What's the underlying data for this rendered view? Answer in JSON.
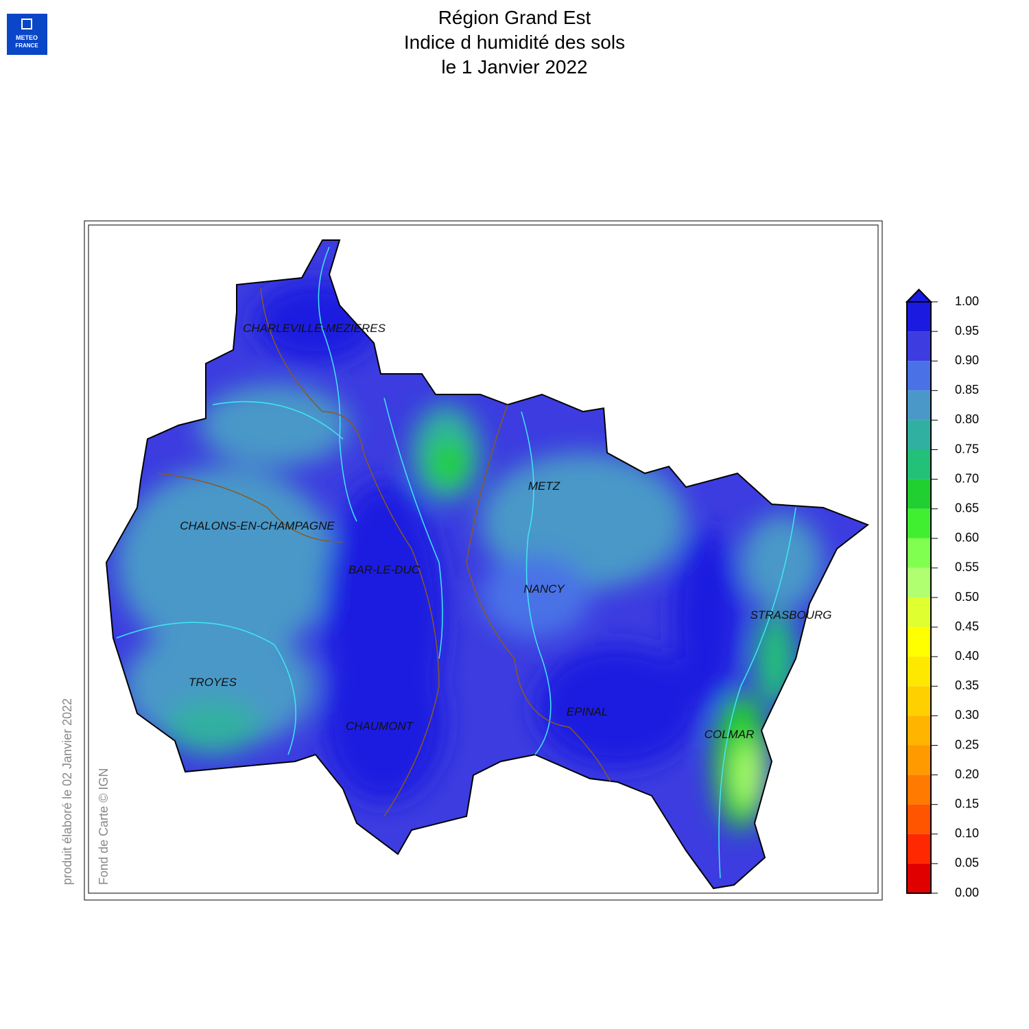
{
  "header": {
    "logo": [
      "METEO",
      "FRANCE"
    ],
    "title": [
      "Région Grand Est",
      "Indice d humidité des sols",
      "le 1 Janvier 2022"
    ]
  },
  "map": {
    "cities": [
      "CHARLEVILLE-MEZIERES",
      "METZ",
      "CHALONS-EN-CHAMPAGNE",
      "BAR-LE-DUC",
      "NANCY",
      "STRASBOURG",
      "TROYES",
      "EPINAL",
      "CHAUMONT",
      "COLMAR"
    ]
  },
  "legend": {
    "ticks": [
      {
        "value": 1,
        "label": "1.00"
      },
      {
        "value": 0.95,
        "label": "0.95"
      },
      {
        "value": 0.9,
        "label": "0.90"
      },
      {
        "value": 0.85,
        "label": "0.85"
      },
      {
        "value": 0.8,
        "label": "0.80"
      },
      {
        "value": 0.75,
        "label": "0.75"
      },
      {
        "value": 0.7,
        "label": "0.70"
      },
      {
        "value": 0.65,
        "label": "0.65"
      },
      {
        "value": 0.6,
        "label": "0.60"
      },
      {
        "value": 0.55,
        "label": "0.55"
      },
      {
        "value": 0.5,
        "label": "0.50"
      },
      {
        "value": 0.45,
        "label": "0.45"
      },
      {
        "value": 0.4,
        "label": "0.40"
      },
      {
        "value": 0.35,
        "label": "0.35"
      },
      {
        "value": 0.3,
        "label": "0.30"
      },
      {
        "value": 0.25,
        "label": "0.25"
      },
      {
        "value": 0.2,
        "label": "0.20"
      },
      {
        "value": 0.15,
        "label": "0.15"
      },
      {
        "value": 0.1,
        "label": "0.10"
      },
      {
        "value": 0.05,
        "label": "0.05"
      },
      {
        "value": 0,
        "label": "0.00"
      }
    ],
    "colors": [
      "#1a1ae0",
      "#3c3ce0",
      "#4a72e6",
      "#4a98c8",
      "#30b0a0",
      "#22c078",
      "#20d030",
      "#40f030",
      "#80ff50",
      "#b0ff70",
      "#e0ff30",
      "#ffff00",
      "#ffe800",
      "#ffd000",
      "#ffb400",
      "#ff9a00",
      "#ff7a00",
      "#ff5500",
      "#ff2800",
      "#e00000"
    ],
    "extend_color": "#1a1ae0"
  },
  "credits": [
    "produit élaboré le 02 Janvier 2022",
    "Fond de Carte © IGN"
  ]
}
